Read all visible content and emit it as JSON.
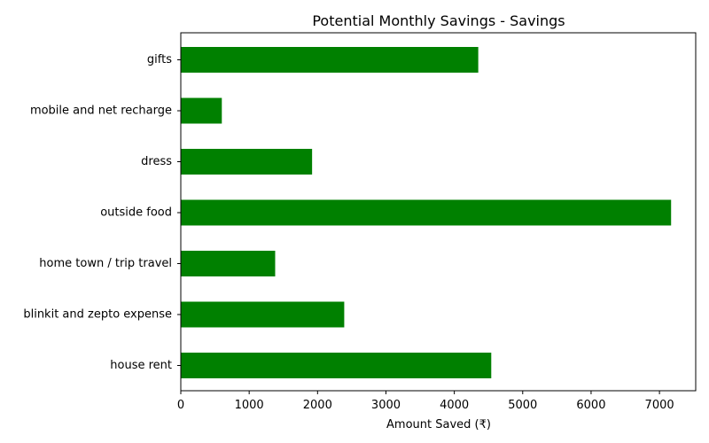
{
  "chart_data": {
    "type": "bar",
    "orientation": "horizontal",
    "title": "Potential Monthly Savings - Savings",
    "xlabel": "Amount Saved (₹)",
    "ylabel": "",
    "categories": [
      "house rent",
      "blinkit and zepto expense",
      "home town / trip travel",
      "outside food",
      "dress",
      "mobile and net recharge",
      "gifts"
    ],
    "values": [
      4540,
      2390,
      1380,
      7170,
      1920,
      600,
      4350
    ],
    "xlim": [
      0,
      7530
    ],
    "xticks": [
      0,
      1000,
      2000,
      3000,
      4000,
      5000,
      6000,
      7000
    ],
    "xtick_labels": [
      "0",
      "1000",
      "2000",
      "3000",
      "4000",
      "5000",
      "6000",
      "7000"
    ],
    "bar_color": "#008000",
    "grid": false,
    "legend": "none"
  }
}
